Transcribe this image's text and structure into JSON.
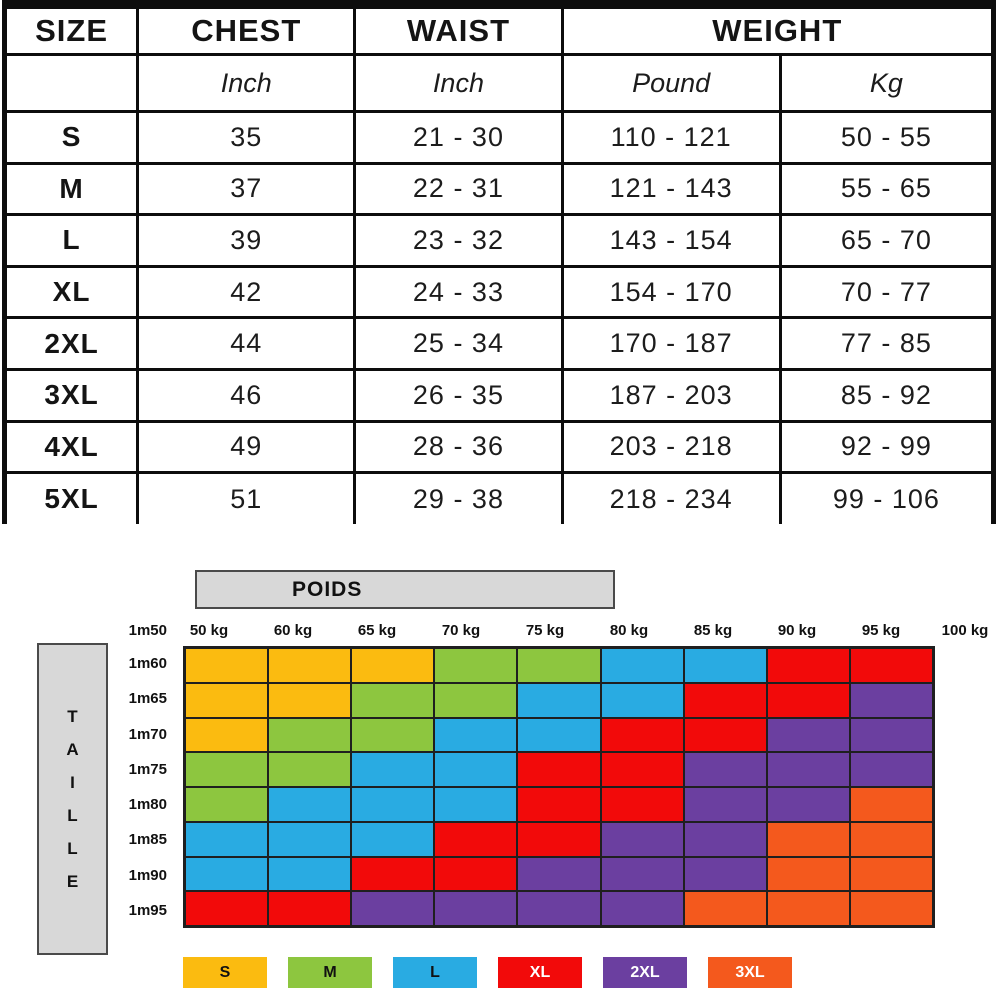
{
  "size_table": {
    "columns": [
      "SIZE",
      "CHEST",
      "WAIST",
      "WEIGHT"
    ],
    "unit_row": {
      "size": "",
      "chest": "Inch",
      "waist": "Inch",
      "pound": "Pound",
      "kg": "Kg"
    },
    "rows": [
      {
        "size": "S",
        "chest": "35",
        "waist": "21 - 30",
        "pound": "110 - 121",
        "kg": "50 - 55"
      },
      {
        "size": "M",
        "chest": "37",
        "waist": "22 - 31",
        "pound": "121 - 143",
        "kg": "55 - 65"
      },
      {
        "size": "L",
        "chest": "39",
        "waist": "23 - 32",
        "pound": "143 - 154",
        "kg": "65 - 70"
      },
      {
        "size": "XL",
        "chest": "42",
        "waist": "24 - 33",
        "pound": "154 - 170",
        "kg": "70 - 77"
      },
      {
        "size": "2XL",
        "chest": "44",
        "waist": "25 - 34",
        "pound": "170 - 187",
        "kg": "77 - 85"
      },
      {
        "size": "3XL",
        "chest": "46",
        "waist": "26 - 35",
        "pound": "187 - 203",
        "kg": "85 - 92"
      },
      {
        "size": "4XL",
        "chest": "49",
        "waist": "28 - 36",
        "pound": "203 - 218",
        "kg": "92 - 99"
      },
      {
        "size": "5XL",
        "chest": "51",
        "waist": "29 - 38",
        "pound": "218 - 234",
        "kg": "99 - 106"
      }
    ]
  },
  "chart_data": {
    "type": "heatmap",
    "title": "POIDS",
    "xlabel": "POIDS",
    "ylabel": "TAILLE",
    "x_boundary_labels": [
      "50 kg",
      "60 kg",
      "65 kg",
      "70 kg",
      "75 kg",
      "80 kg",
      "85 kg",
      "90 kg",
      "95 kg",
      "100 kg"
    ],
    "y_origin_label": "1m50",
    "y_labels": [
      "1m60",
      "1m65",
      "1m70",
      "1m75",
      "1m80",
      "1m85",
      "1m90",
      "1m95"
    ],
    "cells": [
      [
        "S",
        "S",
        "S",
        "M",
        "M",
        "L",
        "L",
        "XL",
        "XL"
      ],
      [
        "S",
        "S",
        "M",
        "M",
        "L",
        "L",
        "XL",
        "XL",
        "2XL"
      ],
      [
        "S",
        "M",
        "M",
        "L",
        "L",
        "XL",
        "XL",
        "2XL",
        "2XL"
      ],
      [
        "M",
        "M",
        "L",
        "L",
        "XL",
        "XL",
        "2XL",
        "2XL",
        "2XL"
      ],
      [
        "M",
        "L",
        "L",
        "L",
        "XL",
        "XL",
        "2XL",
        "2XL",
        "3XL"
      ],
      [
        "L",
        "L",
        "L",
        "XL",
        "XL",
        "2XL",
        "2XL",
        "3XL",
        "3XL"
      ],
      [
        "L",
        "L",
        "XL",
        "XL",
        "2XL",
        "2XL",
        "2XL",
        "3XL",
        "3XL"
      ],
      [
        "XL",
        "XL",
        "2XL",
        "2XL",
        "2XL",
        "2XL",
        "3XL",
        "3XL",
        "3XL"
      ]
    ],
    "size_colors": {
      "S": "#FBBB10",
      "M": "#8DC63F",
      "L": "#29ABE2",
      "XL": "#F20A0A",
      "2XL": "#6B3FA0",
      "3XL": "#F4591D"
    },
    "legend": [
      {
        "label": "S",
        "color": "#FBBB10",
        "text_color": "#111111"
      },
      {
        "label": "M",
        "color": "#8DC63F",
        "text_color": "#111111"
      },
      {
        "label": "L",
        "color": "#29ABE2",
        "text_color": "#111111"
      },
      {
        "label": "XL",
        "color": "#F20A0A",
        "text_color": "#FFFFFF"
      },
      {
        "label": "2XL",
        "color": "#6B3FA0",
        "text_color": "#FFFFFF"
      },
      {
        "label": "3XL",
        "color": "#F4591D",
        "text_color": "#FFFFFF"
      }
    ],
    "legend_position": "bottom",
    "grid_on": true,
    "panel_fill": "#D8D8D8",
    "panel_border": "#4a4a4a"
  }
}
